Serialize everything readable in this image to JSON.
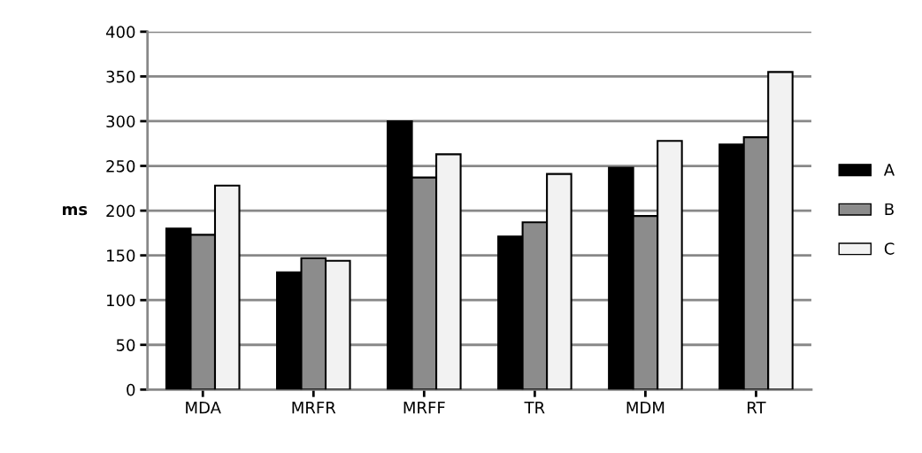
{
  "chart_data": {
    "type": "bar",
    "ylabel": "ms",
    "categories": [
      "MDA",
      "MRFR",
      "MRFF",
      "TR",
      "MDM",
      "RT"
    ],
    "series": [
      {
        "name": "A",
        "color": "#000000",
        "values": [
          180,
          131,
          300,
          171,
          248,
          274
        ]
      },
      {
        "name": "B",
        "color": "#8c8c8c",
        "values": [
          173,
          147,
          237,
          187,
          194,
          282
        ]
      },
      {
        "name": "C",
        "color": "#f2f2f2",
        "values": [
          228,
          144,
          263,
          241,
          278,
          355
        ]
      }
    ],
    "ylim": [
      0,
      400
    ],
    "yticks": [
      0,
      50,
      100,
      150,
      200,
      250,
      300,
      350,
      400
    ],
    "grid": "y",
    "legend": "right"
  }
}
